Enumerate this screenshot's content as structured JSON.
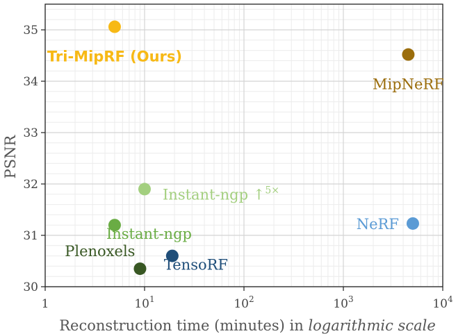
{
  "chart_data": {
    "type": "scatter",
    "title": "",
    "xlabel": "Reconstruction time (minutes) in",
    "xlabel_italic": "logarithmic scale",
    "ylabel": "PSNR",
    "x_scale": "log",
    "xlim": [
      1,
      10000
    ],
    "ylim": [
      30,
      35.5
    ],
    "x_ticks": [
      {
        "value": 1,
        "base": "1",
        "exp": ""
      },
      {
        "value": 10,
        "base": "10",
        "exp": "1"
      },
      {
        "value": 100,
        "base": "10",
        "exp": "2"
      },
      {
        "value": 1000,
        "base": "10",
        "exp": "3"
      },
      {
        "value": 10000,
        "base": "10",
        "exp": "4"
      }
    ],
    "y_ticks": [
      30,
      31,
      32,
      33,
      34,
      35
    ],
    "grid": true,
    "points": [
      {
        "label": "Tri-MipRF (Ours)",
        "x": 5,
        "y": 35.06,
        "color": "#f7b916",
        "bold": true,
        "label_pos": "below"
      },
      {
        "label": "MipNeRF",
        "x": 4500,
        "y": 34.52,
        "color": "#9b6d0c",
        "bold": false,
        "label_pos": "below"
      },
      {
        "label": "Instant-ngp ↑",
        "label_sup": "5×",
        "x": 10,
        "y": 31.9,
        "color": "#a3cf7f",
        "bold": false,
        "label_pos": "right"
      },
      {
        "label": "Instant-ngp",
        "x": 5,
        "y": 31.2,
        "color": "#6aac44",
        "bold": false,
        "label_pos": "below-right"
      },
      {
        "label": "NeRF",
        "x": 5000,
        "y": 31.23,
        "color": "#5b9bd5",
        "bold": false,
        "label_pos": "left"
      },
      {
        "label": "Plenoxels",
        "x": 9,
        "y": 30.35,
        "color": "#385723",
        "bold": false,
        "label_pos": "above-left"
      },
      {
        "label": "TensoRF",
        "x": 19,
        "y": 30.6,
        "color": "#1f4e79",
        "bold": false,
        "label_pos": "below-right"
      }
    ]
  }
}
